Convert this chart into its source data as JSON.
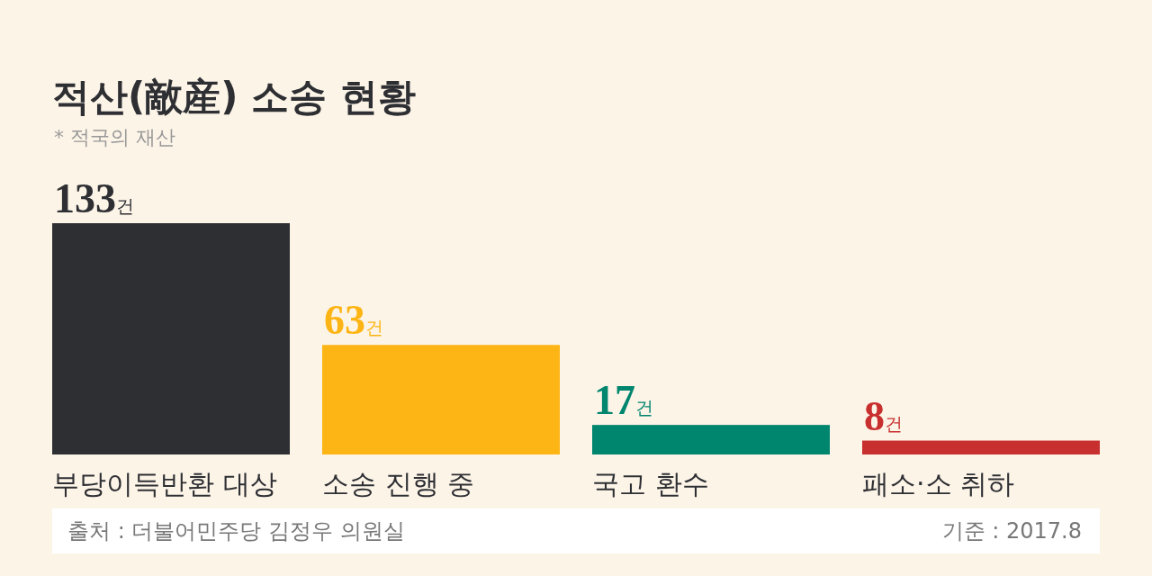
{
  "chart_data": {
    "type": "bar",
    "title": "적산(敵産) 소송 현황",
    "subtitle": "* 적국의 재산",
    "categories": [
      "부당이득반환 대상",
      "소송 진행 중",
      "국고 환수",
      "패소·소 취하"
    ],
    "values": [
      133,
      63,
      17,
      8
    ],
    "colors": [
      "#2e2f33",
      "#fdb515",
      "#00856f",
      "#c8302f"
    ],
    "value_labels": [
      "133건",
      "63건",
      "17건",
      "8건"
    ],
    "annotations": [
      "출처 : 더불어민주당 김정우 의원실",
      "기준 : 2017.8"
    ]
  }
}
